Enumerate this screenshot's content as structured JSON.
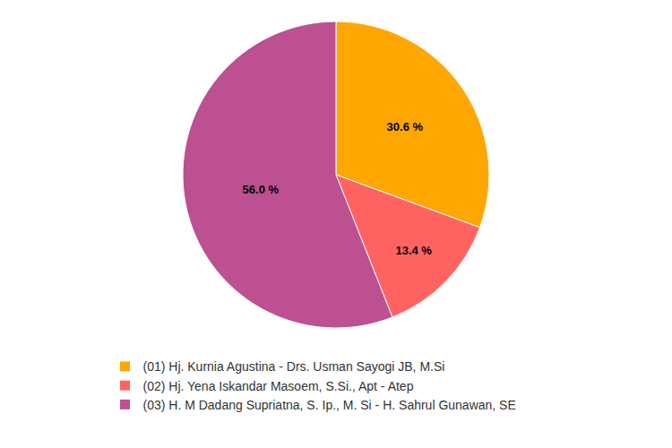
{
  "chart_data": {
    "type": "pie",
    "categories": [
      "(01) Hj. Kurnia Agustina - Drs. Usman Sayogi JB, M.Si",
      "(02) Hj. Yena Iskandar Masoem, S.Si., Apt - Atep",
      "(03) H. M Dadang Supriatna, S. Ip., M. Si - H. Sahrul Gunawan, SE"
    ],
    "values": [
      30.6,
      13.4,
      56.0
    ],
    "value_labels": [
      "30.6 %",
      "13.4 %",
      "56.0 %"
    ],
    "colors": [
      "#ffa600",
      "#ff6361",
      "#bc5090"
    ],
    "data_labels": true,
    "legend": "bottom"
  }
}
